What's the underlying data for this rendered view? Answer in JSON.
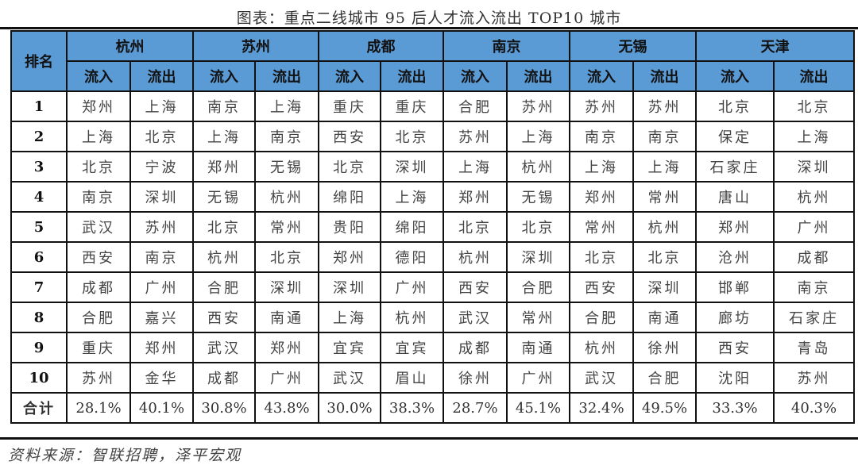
{
  "title": "图表：重点二线城市 95 后人才流入流出 TOP10 城市",
  "header": {
    "rank_label": "排名",
    "cities": [
      "杭州",
      "苏州",
      "成都",
      "南京",
      "无锡",
      "天津"
    ],
    "in_label": "流入",
    "out_label": "流出"
  },
  "rows": [
    {
      "rank": "1",
      "cells": [
        "郑州",
        "上海",
        "南京",
        "上海",
        "重庆",
        "重庆",
        "合肥",
        "苏州",
        "苏州",
        "苏州",
        "北京",
        "北京"
      ]
    },
    {
      "rank": "2",
      "cells": [
        "上海",
        "北京",
        "上海",
        "南京",
        "西安",
        "北京",
        "苏州",
        "上海",
        "南京",
        "南京",
        "保定",
        "上海"
      ]
    },
    {
      "rank": "3",
      "cells": [
        "北京",
        "宁波",
        "郑州",
        "无锡",
        "北京",
        "深圳",
        "上海",
        "杭州",
        "上海",
        "上海",
        "石家庄",
        "深圳"
      ]
    },
    {
      "rank": "4",
      "cells": [
        "南京",
        "深圳",
        "无锡",
        "杭州",
        "绵阳",
        "上海",
        "郑州",
        "无锡",
        "郑州",
        "常州",
        "唐山",
        "杭州"
      ]
    },
    {
      "rank": "5",
      "cells": [
        "武汉",
        "苏州",
        "北京",
        "常州",
        "贵阳",
        "绵阳",
        "北京",
        "北京",
        "常州",
        "杭州",
        "郑州",
        "广州"
      ]
    },
    {
      "rank": "6",
      "cells": [
        "西安",
        "南京",
        "杭州",
        "北京",
        "郑州",
        "德阳",
        "杭州",
        "深圳",
        "北京",
        "北京",
        "沧州",
        "成都"
      ]
    },
    {
      "rank": "7",
      "cells": [
        "成都",
        "广州",
        "合肥",
        "深圳",
        "深圳",
        "广州",
        "西安",
        "合肥",
        "西安",
        "深圳",
        "邯郸",
        "南京"
      ]
    },
    {
      "rank": "8",
      "cells": [
        "合肥",
        "嘉兴",
        "西安",
        "南通",
        "上海",
        "杭州",
        "武汉",
        "常州",
        "合肥",
        "南通",
        "廊坊",
        "石家庄"
      ]
    },
    {
      "rank": "9",
      "cells": [
        "重庆",
        "郑州",
        "武汉",
        "郑州",
        "宜宾",
        "宜宾",
        "成都",
        "南通",
        "杭州",
        "徐州",
        "西安",
        "青岛"
      ]
    },
    {
      "rank": "10",
      "cells": [
        "苏州",
        "金华",
        "成都",
        "广州",
        "武汉",
        "眉山",
        "徐州",
        "广州",
        "武汉",
        "合肥",
        "沈阳",
        "苏州"
      ]
    }
  ],
  "total": {
    "label": "合计",
    "cells": [
      "28.1%",
      "40.1%",
      "30.8%",
      "43.8%",
      "30.0%",
      "38.3%",
      "28.7%",
      "45.1%",
      "32.4%",
      "49.5%",
      "33.3%",
      "40.3%"
    ]
  },
  "source": "资料来源：智联招聘，泽平宏观",
  "colors": {
    "header_bg": "#5b9bd5",
    "border": "#111111"
  }
}
